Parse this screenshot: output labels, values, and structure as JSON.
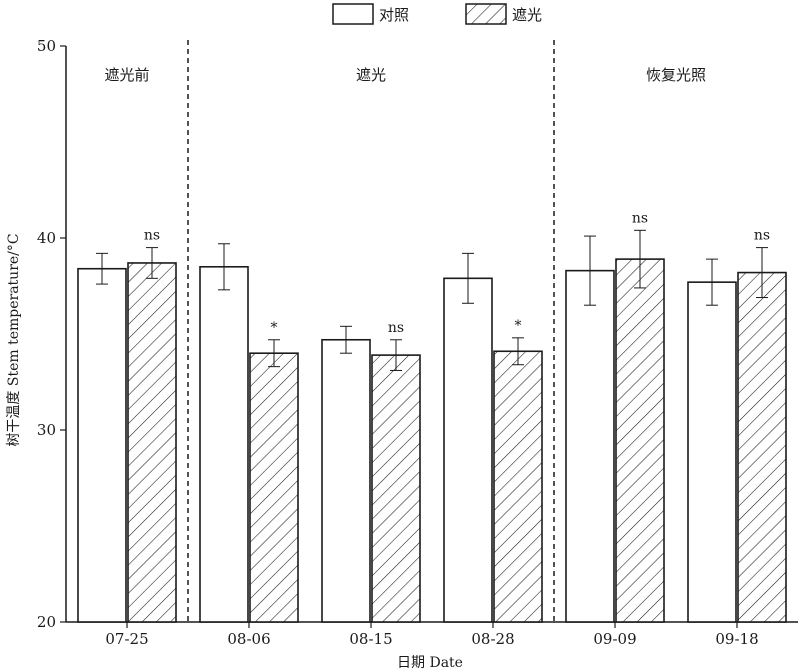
{
  "chart_data": {
    "type": "bar",
    "title": "",
    "xlabel": "日期 Date",
    "ylabel": "树干温度 Stem temperature/°C",
    "ylim": [
      20,
      50
    ],
    "yticks": [
      20,
      30,
      40,
      50
    ],
    "categories": [
      "07-25",
      "08-06",
      "08-15",
      "08-28",
      "09-09",
      "09-18"
    ],
    "series": [
      {
        "name": "对照",
        "pattern": "none",
        "values": [
          38.4,
          38.5,
          34.7,
          37.9,
          38.3,
          37.7
        ],
        "errors": [
          0.8,
          1.2,
          0.7,
          1.3,
          1.8,
          1.2
        ]
      },
      {
        "name": "遮光",
        "pattern": "diagonal-hatch",
        "values": [
          38.7,
          34.0,
          33.9,
          34.1,
          38.9,
          38.2
        ],
        "errors": [
          0.8,
          0.7,
          0.8,
          0.7,
          1.5,
          1.3
        ]
      }
    ],
    "significance": [
      "ns",
      "*",
      "ns",
      "*",
      "ns",
      "ns"
    ],
    "periods": [
      {
        "label": "遮光前",
        "start_category": 0,
        "end_category": 0
      },
      {
        "label": "遮光",
        "start_category": 1,
        "end_category": 3
      },
      {
        "label": "恢复光照",
        "start_category": 4,
        "end_category": 5
      }
    ],
    "legend_position": "top-center",
    "grid": false,
    "colors": {
      "bar_stroke": "#1a1a1a",
      "bar_fill": "#ffffff",
      "hatch": "#1a1a1a"
    }
  }
}
